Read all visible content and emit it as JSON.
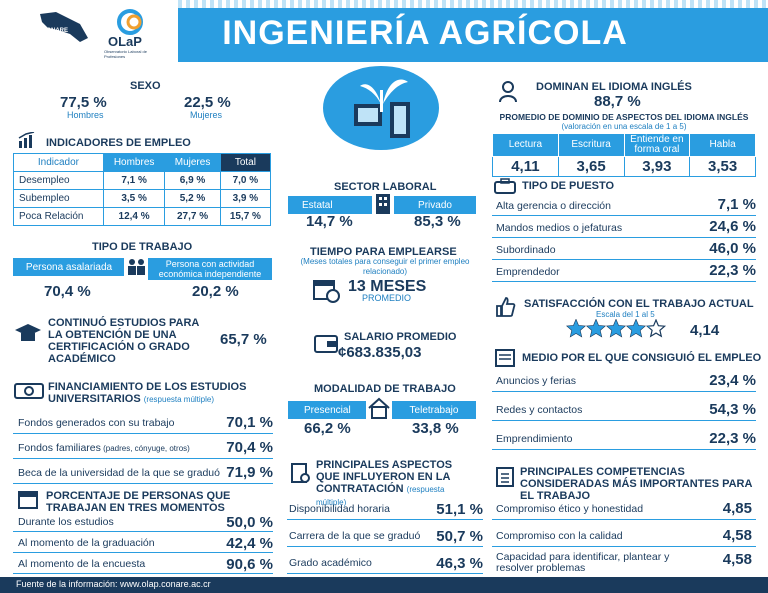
{
  "header": {
    "title": "INGENIERÍA AGRÍCOLA",
    "conare": "CONARE",
    "olap": "OLaP",
    "olap_sub": "Observatorio Laboral de Profesiones"
  },
  "sexo": {
    "title": "SEXO",
    "hombres_pct": "77,5 %",
    "hombres": "Hombres",
    "mujeres_pct": "22,5 %",
    "mujeres": "Mujeres"
  },
  "empleo": {
    "title": "INDICADORES DE EMPLEO",
    "headers": [
      "Indicador",
      "Hombres",
      "Mujeres",
      "Total"
    ],
    "rows": [
      [
        "Desempleo",
        "7,1 %",
        "6,9 %",
        "7,0 %"
      ],
      [
        "Subempleo",
        "3,5 %",
        "5,2 %",
        "3,9 %"
      ],
      [
        "Poca Relación",
        "12,4 %",
        "27,7 %",
        "15,7 %"
      ]
    ]
  },
  "trabajo": {
    "title": "TIPO DE TRABAJO",
    "asalariada": "Persona asalariada",
    "independiente": "Persona con actividad económica independiente",
    "asalariada_pct": "70,4 %",
    "independiente_pct": "20,2 %"
  },
  "estudios": {
    "title": "CONTINUÓ ESTUDIOS PARA LA OBTENCIÓN DE UNA CERTIFICACIÓN O GRADO ACADÉMICO",
    "value": "65,7 %"
  },
  "financ": {
    "title": "FINANCIAMIENTO DE LOS ESTUDIOS UNIVERSITARIOS",
    "note": "(respuesta múltiple)",
    "rows": [
      {
        "label": "Fondos generados con su trabajo",
        "extra": "",
        "value": "70,1 %"
      },
      {
        "label": "Fondos familiares",
        "extra": " (padres, cónyuge, otros)",
        "value": "70,4 %"
      },
      {
        "label": "Beca de la universidad de la que se graduó",
        "extra": "",
        "value": "71,9 %"
      }
    ]
  },
  "tres": {
    "title": "PORCENTAJE DE PERSONAS QUE TRABAJAN EN TRES MOMENTOS",
    "rows": [
      {
        "label": "Durante los estudios",
        "value": "50,0 %"
      },
      {
        "label": "Al momento de la graduación",
        "value": "42,4 %"
      },
      {
        "label": "Al momento de la encuesta",
        "value": "90,6 %"
      }
    ]
  },
  "sector": {
    "title": "SECTOR LABORAL",
    "estatal": "Estatal",
    "privado": "Privado",
    "estatal_pct": "14,7 %",
    "privado_pct": "85,3 %"
  },
  "tiempo": {
    "title": "TIEMPO PARA EMPLEARSE",
    "sub": "(Meses totales para conseguir el primer empleo relacionado)",
    "value": "13 MESES",
    "promedio": "PROMEDIO"
  },
  "salario": {
    "title": "SALARIO PROMEDIO",
    "value": "¢683.835,03"
  },
  "modalidad": {
    "title": "MODALIDAD DE TRABAJO",
    "presencial": "Presencial",
    "teletrabajo": "Teletrabajo",
    "presencial_pct": "66,2 %",
    "teletrabajo_pct": "33,8 %"
  },
  "aspectos": {
    "title": "PRINCIPALES ASPECTOS QUE INFLUYERON EN LA CONTRATACIÓN",
    "note": "(respuesta múltiple)",
    "rows": [
      {
        "label": "Disponibilidad horaria",
        "value": "51,1 %"
      },
      {
        "label": "Carrera de la que se graduó",
        "value": "50,7 %"
      },
      {
        "label": "Grado académico",
        "value": "46,3 %"
      }
    ]
  },
  "ingles": {
    "title": "DOMINAN EL IDIOMA INGLÉS",
    "value": "88,7 %",
    "sub_title": "PROMEDIO DE DOMINIO DE ASPECTOS DEL IDIOMA INGLÉS",
    "sub_note": "(valoración en una escala de 1 a 5)",
    "headers": [
      "Lectura",
      "Escritura",
      "Entiende en forma oral",
      "Habla"
    ],
    "values": [
      "4,11",
      "3,65",
      "3,93",
      "3,53"
    ]
  },
  "puesto": {
    "title": "TIPO DE PUESTO",
    "rows": [
      {
        "label": "Alta gerencia o dirección",
        "value": "7,1 %"
      },
      {
        "label": "Mandos medios o jefaturas",
        "value": "24,6 %"
      },
      {
        "label": "Subordinado",
        "value": "46,0 %"
      },
      {
        "label": "Emprendedor",
        "value": "22,3 %"
      }
    ]
  },
  "satisf": {
    "title": "SATISFACCIÓN CON EL TRABAJO ACTUAL",
    "scale": "Escala del 1 al 5",
    "value": "4,14",
    "stars": 4.14
  },
  "medio": {
    "title": "MEDIO POR EL QUE CONSIGUIÓ EL EMPLEO",
    "rows": [
      {
        "label": "Anuncios y ferias",
        "value": "23,4 %"
      },
      {
        "label": "Redes y contactos",
        "value": "54,3 %"
      },
      {
        "label": "Emprendimiento",
        "value": "22,3 %"
      }
    ]
  },
  "compet": {
    "title": "PRINCIPALES COMPETENCIAS CONSIDERADAS MÁS IMPORTANTES PARA EL TRABAJO",
    "rows": [
      {
        "label": "Compromiso ético y honestidad",
        "value": "4,85"
      },
      {
        "label": "Compromiso con la calidad",
        "value": "4,58"
      },
      {
        "label": "Capacidad para identificar, plantear y resolver problemas",
        "value": "4,58"
      }
    ]
  },
  "footer": "Fuente de la información: www.olap.conare.ac.cr",
  "colors": {
    "navy": "#1a3a5c",
    "blue": "#2a9de0"
  }
}
